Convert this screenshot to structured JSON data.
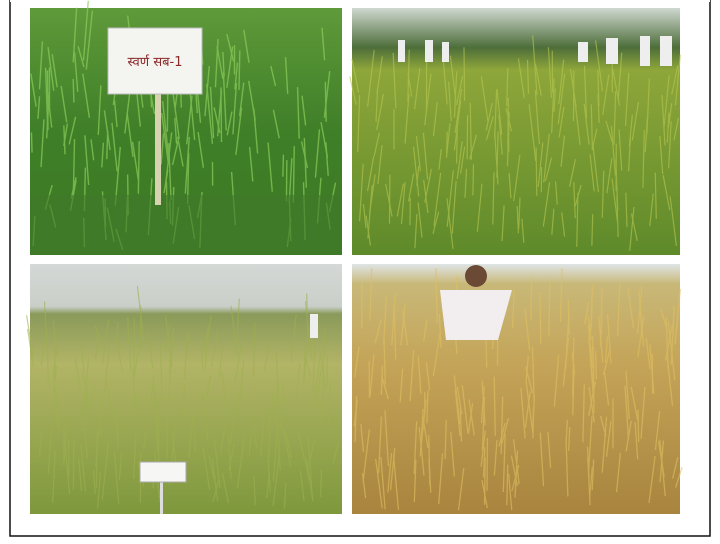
{
  "panels": [
    {
      "sign": "स्वर्ण सब-1"
    }
  ]
}
